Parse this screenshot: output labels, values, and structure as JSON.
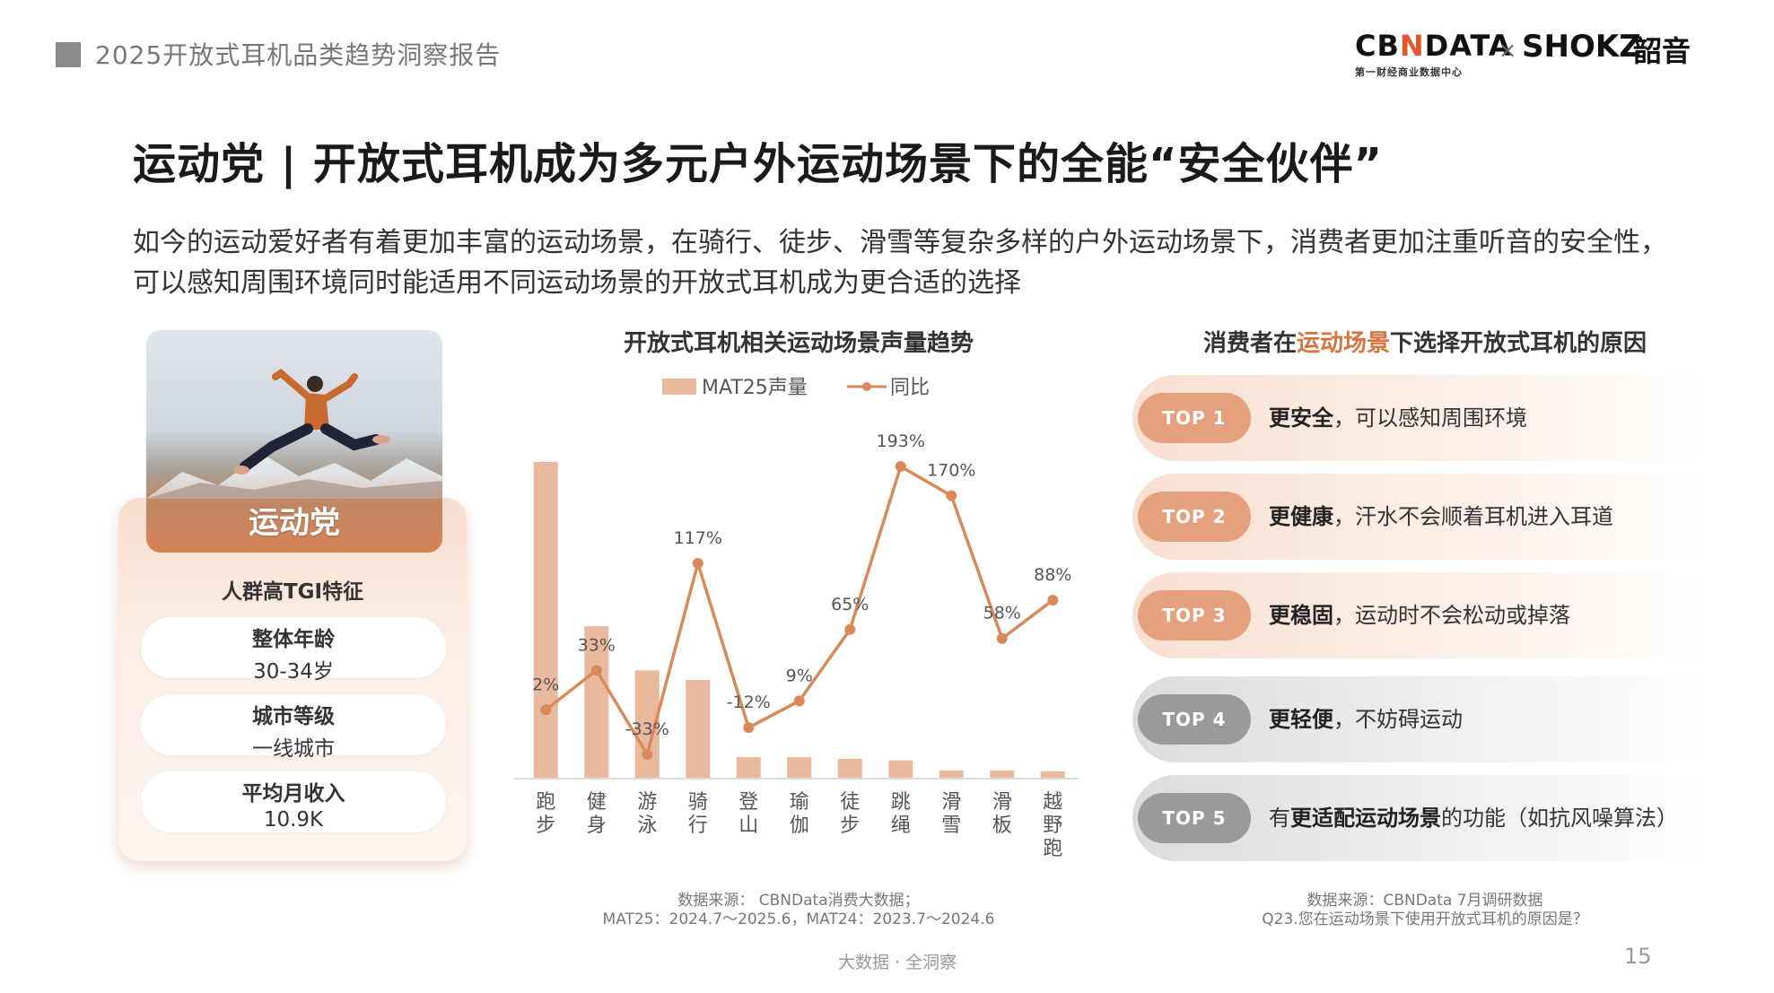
{
  "header": {
    "report_title": "2025开放式耳机品类趋势洞察报告",
    "logo_cbn_prefix": "CB",
    "logo_cbn_x": "N",
    "logo_cbn_suffix": "DATA",
    "logo_cbn_sub": "第一财经商业数据中心",
    "logo_times": "×",
    "logo_shokz": "SHOKZ",
    "logo_shokz_cn": "韶音"
  },
  "main_title": "运动党 | 开放式耳机成为多元户外运动场景下的全能“安全伙伴”",
  "intro": "如今的运动爱好者有着更加丰富的运动场景，在骑行、徒步、滑雪等复杂多样的户外运动场景下，消费者更加注重听音的安全性，可以感知周围环境同时能适用不同运动场景的开放式耳机成为更合适的选择",
  "persona": {
    "label": "运动党",
    "tgi_title": "人群高TGI特征",
    "features": [
      {
        "label": "整体年龄",
        "value": "30-34岁"
      },
      {
        "label": "城市等级",
        "value": "一线城市"
      },
      {
        "label": "平均月收入",
        "value": "10.9K"
      }
    ]
  },
  "chart_title": "开放式耳机相关运动场景声量趋势",
  "chart_data": {
    "type": "bar",
    "title": "开放式耳机相关运动场景声量趋势",
    "categories": [
      "跑步",
      "健身",
      "游泳",
      "骑行",
      "登山",
      "瑜伽",
      "徒步",
      "跳绳",
      "滑雪",
      "滑板",
      "越野跑"
    ],
    "series": [
      {
        "name": "MAT25声量",
        "type": "bar",
        "color": "#e9b99e",
        "values": [
          100,
          48,
          34,
          31,
          6.5,
          6.5,
          6,
          5.5,
          2.3,
          2.3,
          2
        ]
      },
      {
        "name": "同比",
        "type": "line",
        "color": "#d98a5a",
        "values": [
          2,
          33,
          -33,
          117,
          -12,
          9,
          65,
          193,
          170,
          58,
          88
        ],
        "labels": [
          "2%",
          "33%",
          "-33%",
          "117%",
          "-12%",
          "9%",
          "65%",
          "193%",
          "170%",
          "58%",
          "88%"
        ]
      }
    ],
    "legend_position": "top-center",
    "grid": false
  },
  "chart_source": {
    "line1": "数据来源： CBNData消费大数据；",
    "line2": "MAT25：2024.7～2025.6，MAT24：2023.7～2024.6"
  },
  "reasons": {
    "title_prefix": "消费者在",
    "title_highlight": "运动场景",
    "title_suffix": "下选择开放式耳机的原因",
    "items": [
      {
        "badge": "TOP 1",
        "pre": "",
        "bold": "更安全",
        "rest": "，可以感知周围环境",
        "style": "warm"
      },
      {
        "badge": "TOP 2",
        "pre": "",
        "bold": "更健康",
        "rest": "，汗水不会顺着耳机进入耳道",
        "style": "warm"
      },
      {
        "badge": "TOP 3",
        "pre": "",
        "bold": "更稳固",
        "rest": "，运动时不会松动或掉落",
        "style": "warm"
      },
      {
        "badge": "TOP 4",
        "pre": "",
        "bold": "更轻便",
        "rest": "，不妨碍运动",
        "style": "gray"
      },
      {
        "badge": "TOP 5",
        "pre": "有",
        "bold": "更适配运动场景",
        "rest": "的功能（如抗风噪算法）",
        "style": "gray"
      }
    ],
    "source_line1": "数据来源：CBNData 7月调研数据",
    "source_line2": "Q23.您在运动场景下使用开放式耳机的原因是？"
  },
  "footer": {
    "center": "大数据 · 全洞察",
    "page_number": "15"
  },
  "colors": {
    "accent": "#d4743f",
    "bar": "#e9b99e",
    "line": "#d98a5a"
  }
}
